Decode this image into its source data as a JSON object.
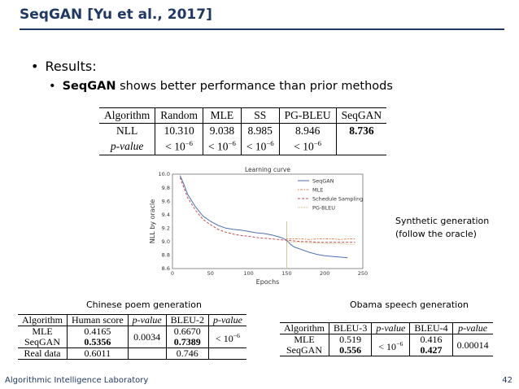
{
  "slide": {
    "title": "SeqGAN [Yu et al., 2017]",
    "bullet1": "Results:",
    "bullet2_bold": "SeqGAN",
    "bullet2_rest": " shows better performance than prior methods",
    "footer_left": "Algorithmic Intelligence Laboratory",
    "page_number": "42",
    "accent_color": "#1f3864"
  },
  "main_table": {
    "headers": [
      "Algorithm",
      "Random",
      "MLE",
      "SS",
      "PG-BLEU",
      "SeqGAN"
    ],
    "nll_row": [
      "NLL",
      "10.310",
      "9.038",
      "8.985",
      "8.946",
      "8.736"
    ],
    "pvalue_label": "p-value",
    "pvalue_prefix": "< 10",
    "pvalue_exp": "−6"
  },
  "note": {
    "line1": "Synthetic generation",
    "line2": "(follow the oracle)"
  },
  "chart_data": {
    "type": "line",
    "title": "Learning curve",
    "xlabel": "Epochs",
    "ylabel": "NLL by oracle",
    "xlim": [
      0,
      250
    ],
    "ylim": [
      8.6,
      10.0
    ],
    "xticks": [
      "0",
      "50",
      "100",
      "150",
      "200",
      "250"
    ],
    "yticks": [
      "8.6",
      "8.8",
      "9.0",
      "9.2",
      "9.4",
      "9.6",
      "9.8",
      "10.0"
    ],
    "legend": [
      "SeqGAN",
      "MLE",
      "Schedule Sampling",
      "PG-BLEU"
    ],
    "legend_position": "top-right",
    "series": [
      {
        "name": "SeqGAN",
        "color": "#4c72b0",
        "x": [
          10,
          15,
          20,
          30,
          40,
          50,
          60,
          70,
          80,
          90,
          100,
          110,
          120,
          130,
          140,
          145,
          150,
          155,
          160,
          170,
          180,
          190,
          200,
          210,
          220,
          230
        ],
        "y": [
          9.98,
          9.85,
          9.7,
          9.52,
          9.38,
          9.3,
          9.24,
          9.2,
          9.18,
          9.17,
          9.15,
          9.13,
          9.12,
          9.1,
          9.07,
          9.05,
          9.02,
          8.96,
          8.92,
          8.88,
          8.84,
          8.81,
          8.79,
          8.78,
          8.77,
          8.76
        ]
      },
      {
        "name": "MLE",
        "color": "#dd8452",
        "x": [
          150,
          160,
          170,
          180,
          190,
          200,
          210,
          220,
          230,
          240
        ],
        "y": [
          9.04,
          9.04,
          9.04,
          9.03,
          9.04,
          9.04,
          9.04,
          9.03,
          9.04,
          9.04
        ]
      },
      {
        "name": "Schedule Sampling",
        "color": "#c44e52",
        "x": [
          10,
          15,
          20,
          30,
          40,
          50,
          60,
          70,
          80,
          90,
          100,
          110,
          120,
          130,
          140,
          150,
          160,
          170,
          180,
          190,
          200,
          210,
          220,
          230,
          240
        ],
        "y": [
          9.95,
          9.8,
          9.65,
          9.47,
          9.33,
          9.25,
          9.18,
          9.14,
          9.11,
          9.09,
          9.08,
          9.06,
          9.05,
          9.04,
          9.03,
          9.02,
          9.01,
          9.0,
          9.0,
          8.99,
          8.99,
          8.99,
          8.99,
          8.99,
          8.99
        ]
      },
      {
        "name": "PG-BLEU",
        "color": "#ccb974",
        "x": [
          150,
          160,
          170,
          180,
          190,
          200,
          210,
          220,
          230,
          240
        ],
        "y": [
          9.0,
          8.99,
          8.99,
          8.98,
          8.98,
          8.97,
          8.97,
          8.97,
          8.96,
          8.96
        ]
      }
    ],
    "vline_x": 150
  },
  "poem": {
    "caption": "Chinese poem generation",
    "headers": [
      "Algorithm",
      "Human score",
      "p-value",
      "BLEU-2",
      "p-value"
    ],
    "rows": [
      {
        "alg": "MLE",
        "human": "0.4165",
        "bleu": "0.6670"
      },
      {
        "alg": "SeqGAN",
        "human": "0.5356",
        "bleu": "0.7389"
      }
    ],
    "pvalue_human": "0.0034",
    "pvalue_bleu_prefix": "< 10",
    "pvalue_bleu_exp": "−6",
    "real": {
      "alg": "Real data",
      "human": "0.6011",
      "bleu": "0.746"
    }
  },
  "obama": {
    "caption": "Obama speech generation",
    "headers": [
      "Algorithm",
      "BLEU-3",
      "p-value",
      "BLEU-4",
      "p-value"
    ],
    "rows": [
      {
        "alg": "MLE",
        "b3": "0.519",
        "b4": "0.416"
      },
      {
        "alg": "SeqGAN",
        "b3": "0.556",
        "b4": "0.427"
      }
    ],
    "pvalue_b3_prefix": "< 10",
    "pvalue_b3_exp": "−6",
    "pvalue_b4": "0.00014"
  }
}
